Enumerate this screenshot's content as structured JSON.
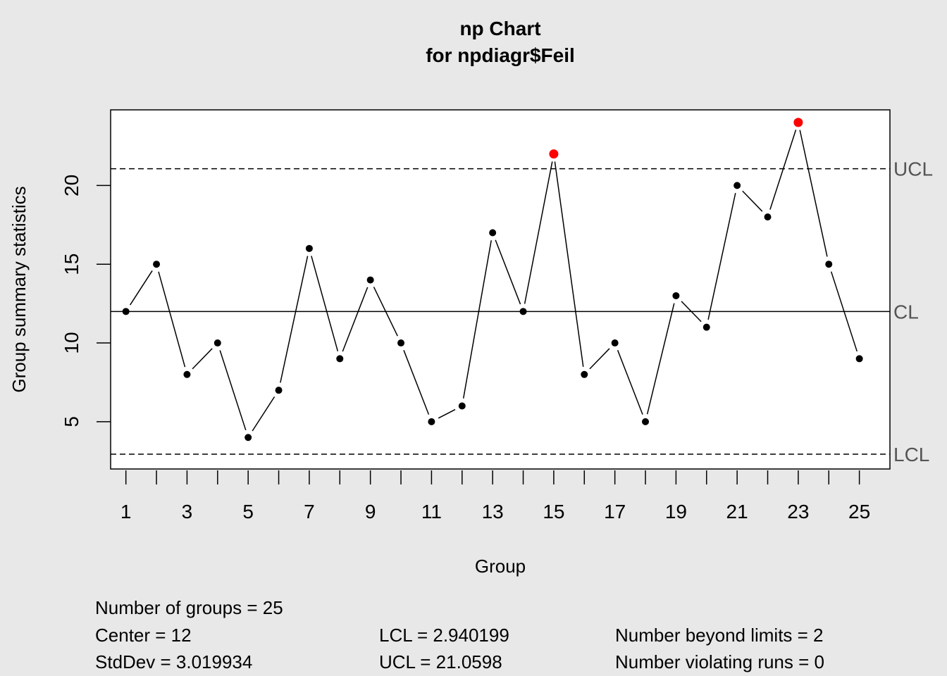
{
  "chart_data": {
    "type": "line",
    "title": "np Chart",
    "subtitle": "for npdiagr$Feil",
    "xlabel": "Group",
    "ylabel": "Group summary statistics",
    "x": [
      1,
      2,
      3,
      4,
      5,
      6,
      7,
      8,
      9,
      10,
      11,
      12,
      13,
      14,
      15,
      16,
      17,
      18,
      19,
      20,
      21,
      22,
      23,
      24,
      25
    ],
    "values": [
      12,
      15,
      8,
      10,
      4,
      7,
      16,
      9,
      14,
      10,
      5,
      6,
      17,
      12,
      22,
      8,
      10,
      5,
      13,
      11,
      20,
      18,
      24,
      15,
      9
    ],
    "xlim": [
      0.5,
      26
    ],
    "ylim": [
      2,
      24.8
    ],
    "x_tick_labels": [
      "1",
      "3",
      "5",
      "7",
      "9",
      "11",
      "13",
      "15",
      "17",
      "19",
      "21",
      "23",
      "25"
    ],
    "y_ticks": [
      5,
      10,
      15,
      20
    ],
    "y_tick_labels": [
      "5",
      "10",
      "15",
      "20"
    ],
    "center_line": {
      "label": "CL",
      "value": 12
    },
    "upper_limit": {
      "label": "UCL",
      "value": 21.0598
    },
    "lower_limit": {
      "label": "LCL",
      "value": 2.940199
    },
    "beyond_limit_color": "#ff0000",
    "point_color": "#000000",
    "grid": false
  },
  "stats": {
    "groups": "Number of groups = 25",
    "center": "Center = 12",
    "stddev": "StdDev = 3.019934",
    "lcl": "LCL = 2.940199",
    "ucl": "UCL = 21.0598",
    "beyond": "Number beyond limits = 2",
    "runs": "Number violating runs = 0"
  }
}
